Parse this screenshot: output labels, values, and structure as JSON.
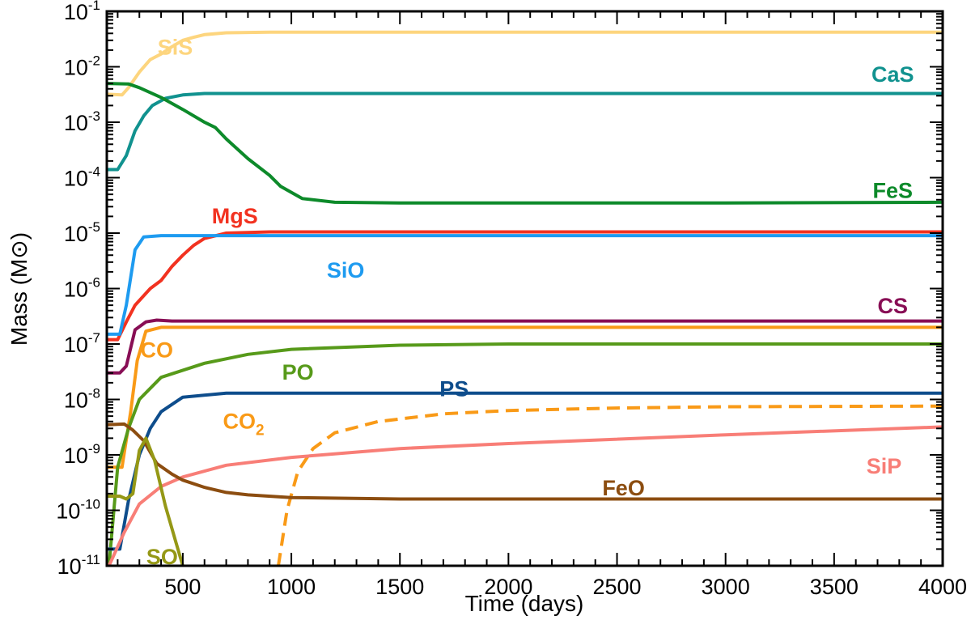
{
  "chart_data": {
    "type": "line",
    "title": "",
    "xlabel": "Time (days)",
    "ylabel_text": "Mass (M",
    "ylabel_symbol": "⊙",
    "ylabel_close": ")",
    "x_scale": "linear",
    "y_scale": "log",
    "xlim": [
      150,
      4000
    ],
    "ylim": [
      1e-11,
      0.1
    ],
    "x_ticks": [
      500,
      1000,
      1500,
      2000,
      2500,
      3000,
      3500,
      4000
    ],
    "x_tick_labels": [
      "500",
      "1000",
      "1500",
      "2000",
      "2500",
      "3000",
      "3500",
      "4000"
    ],
    "y_ticks": [
      0.1,
      0.01,
      0.001,
      0.0001,
      1e-05,
      1e-06,
      1e-07,
      1e-08,
      1e-09,
      1e-10,
      1e-11
    ],
    "y_tick_base": "10",
    "y_tick_exponents": [
      "-1",
      "-2",
      "-3",
      "-4",
      "-5",
      "-6",
      "-7",
      "-8",
      "-9",
      "-10",
      "-11"
    ],
    "series": [
      {
        "name": "SiS",
        "label": "SiS",
        "color": "#FDD57E",
        "dash": false,
        "label_at": [
          465,
          0.023
        ],
        "points": [
          [
            150,
            0.0032
          ],
          [
            220,
            0.0031
          ],
          [
            250,
            0.0042
          ],
          [
            300,
            0.008
          ],
          [
            350,
            0.0135
          ],
          [
            400,
            0.017
          ],
          [
            450,
            0.023
          ],
          [
            500,
            0.03
          ],
          [
            550,
            0.034
          ],
          [
            600,
            0.038
          ],
          [
            700,
            0.041
          ],
          [
            900,
            0.042
          ],
          [
            4000,
            0.042
          ]
        ]
      },
      {
        "name": "CaS",
        "label": "CaS",
        "color": "#11928F",
        "dash": false,
        "label_at": [
          3770,
          0.0075
        ],
        "points": [
          [
            150,
            0.00014
          ],
          [
            200,
            0.00014
          ],
          [
            240,
            0.00025
          ],
          [
            280,
            0.0007
          ],
          [
            320,
            0.0013
          ],
          [
            360,
            0.002
          ],
          [
            420,
            0.0027
          ],
          [
            500,
            0.0031
          ],
          [
            600,
            0.0033
          ],
          [
            4000,
            0.0033
          ]
        ]
      },
      {
        "name": "FeS",
        "label": "FeS",
        "color": "#0D8A2A",
        "dash": false,
        "label_at": [
          3770,
          6e-05
        ],
        "points": [
          [
            150,
            0.005
          ],
          [
            250,
            0.0049
          ],
          [
            300,
            0.0042
          ],
          [
            400,
            0.0028
          ],
          [
            500,
            0.0017
          ],
          [
            600,
            0.001
          ],
          [
            650,
            0.0008
          ],
          [
            700,
            0.0005
          ],
          [
            800,
            0.00022
          ],
          [
            900,
            0.00011
          ],
          [
            950,
            7e-05
          ],
          [
            1050,
            4.2e-05
          ],
          [
            1200,
            3.6e-05
          ],
          [
            1500,
            3.5e-05
          ],
          [
            3000,
            3.5e-05
          ],
          [
            4000,
            3.6e-05
          ]
        ]
      },
      {
        "name": "MgS",
        "label": "MgS",
        "color": "#F23220",
        "dash": false,
        "label_at": [
          740,
          2.1e-05
        ],
        "points": [
          [
            150,
            1.2e-07
          ],
          [
            200,
            1.2e-07
          ],
          [
            240,
            2.5e-07
          ],
          [
            280,
            5e-07
          ],
          [
            350,
            1e-06
          ],
          [
            400,
            1.4e-06
          ],
          [
            450,
            2.5e-06
          ],
          [
            500,
            4e-06
          ],
          [
            550,
            6e-06
          ],
          [
            600,
            8e-06
          ],
          [
            700,
            1e-05
          ],
          [
            900,
            1.05e-05
          ],
          [
            4000,
            1.05e-05
          ]
        ]
      },
      {
        "name": "SiO",
        "label": "SiO",
        "color": "#1E9BF0",
        "dash": false,
        "label_at": [
          1250,
          2.2e-06
        ],
        "points": [
          [
            150,
            1.5e-07
          ],
          [
            210,
            1.5e-07
          ],
          [
            240,
            5e-07
          ],
          [
            280,
            5e-06
          ],
          [
            320,
            8.5e-06
          ],
          [
            400,
            9e-06
          ],
          [
            4000,
            9e-06
          ]
        ]
      },
      {
        "name": "CS",
        "label": "CS",
        "color": "#880E55",
        "dash": false,
        "label_at": [
          3770,
          5e-07
        ],
        "points": [
          [
            150,
            3e-08
          ],
          [
            210,
            3e-08
          ],
          [
            240,
            4e-08
          ],
          [
            280,
            1.8e-07
          ],
          [
            330,
            2.5e-07
          ],
          [
            380,
            2.7e-07
          ],
          [
            450,
            2.6e-07
          ],
          [
            1000,
            2.6e-07
          ],
          [
            4000,
            2.6e-07
          ]
        ]
      },
      {
        "name": "CO",
        "label": "CO",
        "color": "#F99A17",
        "dash": false,
        "label_at": [
          380,
          8e-08
        ],
        "points": [
          [
            150,
            6e-10
          ],
          [
            220,
            6e-10
          ],
          [
            260,
            6e-09
          ],
          [
            290,
            5e-08
          ],
          [
            330,
            1.7e-07
          ],
          [
            400,
            2e-07
          ],
          [
            4000,
            2e-07
          ]
        ]
      },
      {
        "name": "PO",
        "label": "PO",
        "color": "#579A1A",
        "dash": false,
        "label_at": [
          1030,
          3.2e-08
        ],
        "points": [
          [
            160,
            1e-11
          ],
          [
            200,
            6e-10
          ],
          [
            250,
            3e-09
          ],
          [
            300,
            1e-08
          ],
          [
            400,
            2.5e-08
          ],
          [
            600,
            4.5e-08
          ],
          [
            800,
            6.5e-08
          ],
          [
            1000,
            8e-08
          ],
          [
            1500,
            9.5e-08
          ],
          [
            2000,
            1e-07
          ],
          [
            4000,
            1e-07
          ]
        ]
      },
      {
        "name": "PS",
        "label": "PS",
        "color": "#0E4D8C",
        "dash": false,
        "label_at": [
          1750,
          1.6e-08
        ],
        "points": [
          [
            150,
            2e-11
          ],
          [
            210,
            2e-11
          ],
          [
            250,
            1.5e-10
          ],
          [
            300,
            1e-09
          ],
          [
            350,
            3e-09
          ],
          [
            400,
            6e-09
          ],
          [
            500,
            1.1e-08
          ],
          [
            700,
            1.3e-08
          ],
          [
            4000,
            1.3e-08
          ]
        ]
      },
      {
        "name": "CO2",
        "label": "CO",
        "label_sub": "2",
        "color": "#F99A17",
        "dash": true,
        "label_at": [
          780,
          4.2e-09
        ],
        "points": [
          [
            940,
            1e-11
          ],
          [
            980,
            1e-10
          ],
          [
            1030,
            5e-10
          ],
          [
            1100,
            1.3e-09
          ],
          [
            1200,
            2.5e-09
          ],
          [
            1400,
            4e-09
          ],
          [
            1700,
            5.5e-09
          ],
          [
            2000,
            6.3e-09
          ],
          [
            2500,
            7e-09
          ],
          [
            3000,
            7.4e-09
          ],
          [
            4000,
            7.6e-09
          ]
        ]
      },
      {
        "name": "SiP",
        "label": "SiP",
        "color": "#F87E77",
        "dash": false,
        "label_at": [
          3730,
          6.5e-10
        ],
        "points": [
          [
            160,
            1e-11
          ],
          [
            230,
            4e-11
          ],
          [
            300,
            1.3e-10
          ],
          [
            400,
            2.7e-10
          ],
          [
            500,
            4e-10
          ],
          [
            700,
            6.5e-10
          ],
          [
            1000,
            9e-10
          ],
          [
            1500,
            1.3e-09
          ],
          [
            2000,
            1.6e-09
          ],
          [
            3000,
            2.3e-09
          ],
          [
            4000,
            3.2e-09
          ]
        ]
      },
      {
        "name": "FeO",
        "label": "FeO",
        "color": "#8C4D10",
        "dash": false,
        "label_at": [
          2530,
          2.6e-10
        ],
        "points": [
          [
            150,
            3.5e-09
          ],
          [
            230,
            3.6e-09
          ],
          [
            270,
            2.8e-09
          ],
          [
            320,
            1.8e-09
          ],
          [
            380,
            7e-10
          ],
          [
            450,
            4.5e-10
          ],
          [
            500,
            3.5e-10
          ],
          [
            600,
            2.6e-10
          ],
          [
            700,
            2.1e-10
          ],
          [
            800,
            1.9e-10
          ],
          [
            1000,
            1.7e-10
          ],
          [
            1500,
            1.6e-10
          ],
          [
            4000,
            1.6e-10
          ]
        ]
      },
      {
        "name": "SO",
        "label": "SO",
        "color": "#959816",
        "dash": false,
        "label_at": [
          405,
          1.5e-11
        ],
        "points": [
          [
            150,
            1.8e-10
          ],
          [
            210,
            1.8e-10
          ],
          [
            240,
            1.6e-10
          ],
          [
            270,
            2e-10
          ],
          [
            300,
            1.2e-09
          ],
          [
            330,
            2e-09
          ],
          [
            370,
            8e-10
          ],
          [
            420,
            1.2e-10
          ],
          [
            470,
            2.5e-11
          ],
          [
            500,
            1e-11
          ]
        ]
      }
    ]
  }
}
